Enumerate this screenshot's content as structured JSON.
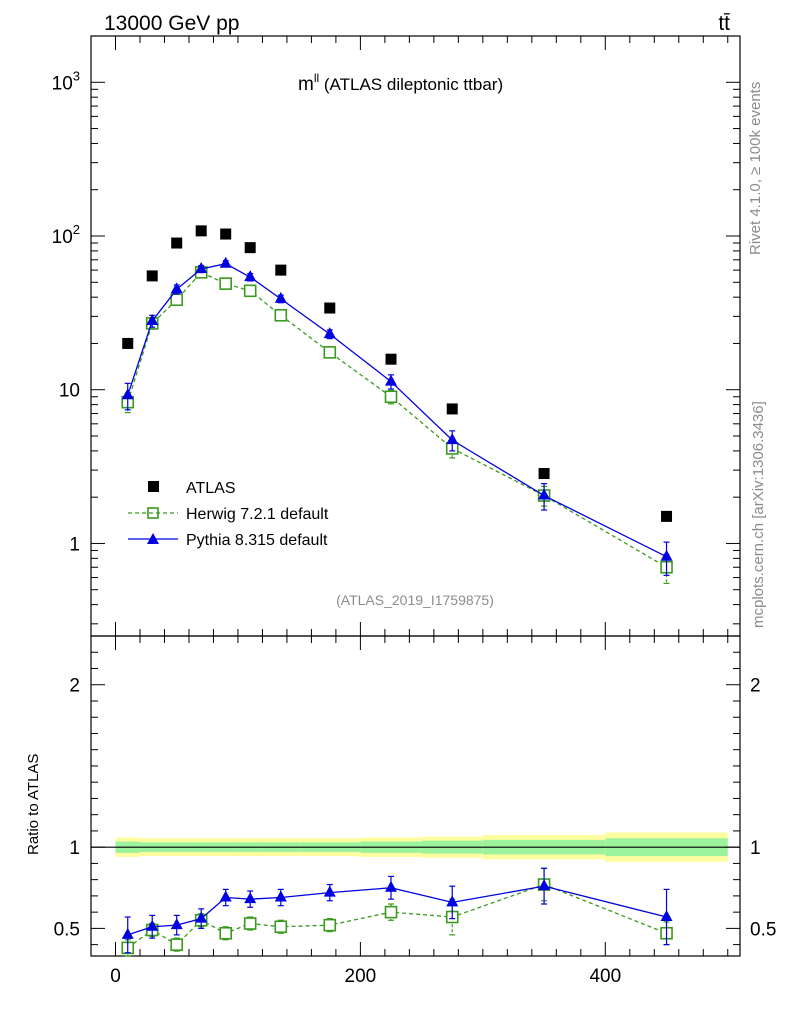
{
  "header": {
    "left": "13000 GeV pp",
    "right": "tt̄"
  },
  "side": {
    "top": "Rivet 4.1.0, ≥ 100k events",
    "bottom": "mcplots.cern.ch [arXiv:1306.3436]"
  },
  "chart_data": {
    "type": "scatter",
    "title": "m",
    "title_sup": "ll",
    "title_rest": " (ATLAS dileptonic ttbar)",
    "analysis": "(ATLAS_2019_I1759875)",
    "x": [
      10,
      30,
      50,
      70,
      90,
      110,
      135,
      175,
      225,
      275,
      350,
      450
    ],
    "xlim": [
      -20,
      510
    ],
    "xticks": [
      "0",
      "200",
      "400"
    ],
    "xtick_values": [
      0,
      200,
      400
    ],
    "main": {
      "yscale": "log",
      "ylim": [
        0.25,
        2000
      ],
      "yticks": [
        {
          "value": 1000,
          "base": "10",
          "exp": "3"
        },
        {
          "value": 100,
          "base": "10",
          "exp": "2"
        },
        {
          "value": 10,
          "base": "10",
          "exp": ""
        },
        {
          "value": 1,
          "base": "1",
          "exp": ""
        }
      ],
      "series": [
        {
          "name": "ATLAS",
          "values": [
            20,
            55,
            90,
            108,
            103,
            84,
            60,
            34,
            15.8,
            7.5,
            2.85,
            1.5
          ]
        },
        {
          "name": "Herwig 7.2.1 default",
          "values": [
            8.3,
            27,
            38.5,
            58,
            49,
            44,
            30.5,
            17.5,
            9.0,
            4.15,
            2.05,
            0.7
          ],
          "err": [
            1.2,
            2.2,
            2.8,
            3.5,
            3.0,
            2.8,
            2.0,
            1.2,
            0.9,
            0.55,
            0.3,
            0.15
          ]
        },
        {
          "name": "Pythia 8.315 default",
          "values": [
            9.2,
            28,
            45,
            61,
            66,
            54,
            39,
            23,
            11.3,
            4.7,
            2.05,
            0.82
          ],
          "err": [
            1.8,
            2.5,
            3.0,
            3.2,
            3.0,
            3.0,
            2.2,
            1.5,
            1.2,
            0.7,
            0.4,
            0.2
          ]
        }
      ]
    },
    "ratio": {
      "ylabel": "Ratio to ATLAS",
      "ylim": [
        0.33,
        2.3
      ],
      "yticks": [
        "0.5",
        "1",
        "2"
      ],
      "ytick_values": [
        0.5,
        1,
        2
      ],
      "bands": {
        "edges": [
          0,
          20,
          40,
          60,
          80,
          100,
          120,
          150,
          200,
          250,
          300,
          400,
          500
        ],
        "stat": [
          0.035,
          0.03,
          0.03,
          0.03,
          0.03,
          0.03,
          0.03,
          0.03,
          0.035,
          0.04,
          0.045,
          0.055
        ],
        "total": [
          0.06,
          0.055,
          0.055,
          0.055,
          0.055,
          0.055,
          0.055,
          0.055,
          0.06,
          0.065,
          0.075,
          0.09
        ]
      },
      "herwig": {
        "values": [
          0.38,
          0.49,
          0.4,
          0.55,
          0.47,
          0.53,
          0.51,
          0.52,
          0.6,
          0.57,
          0.77,
          0.47
        ],
        "err": [
          0.05,
          0.04,
          0.04,
          0.04,
          0.04,
          0.04,
          0.04,
          0.04,
          0.05,
          0.11,
          0.1,
          0.07
        ]
      },
      "pythia": {
        "values": [
          0.46,
          0.51,
          0.52,
          0.56,
          0.69,
          0.68,
          0.69,
          0.72,
          0.75,
          0.66,
          0.76,
          0.57
        ],
        "err": [
          0.11,
          0.07,
          0.06,
          0.06,
          0.05,
          0.05,
          0.05,
          0.05,
          0.07,
          0.1,
          0.11,
          0.17
        ]
      }
    },
    "colors": {
      "data": "#000000",
      "herwig": "#3a9a1e",
      "pythia": "#0000e0",
      "band_stat": "#9df39d",
      "band_total": "#fdfc9e"
    }
  }
}
